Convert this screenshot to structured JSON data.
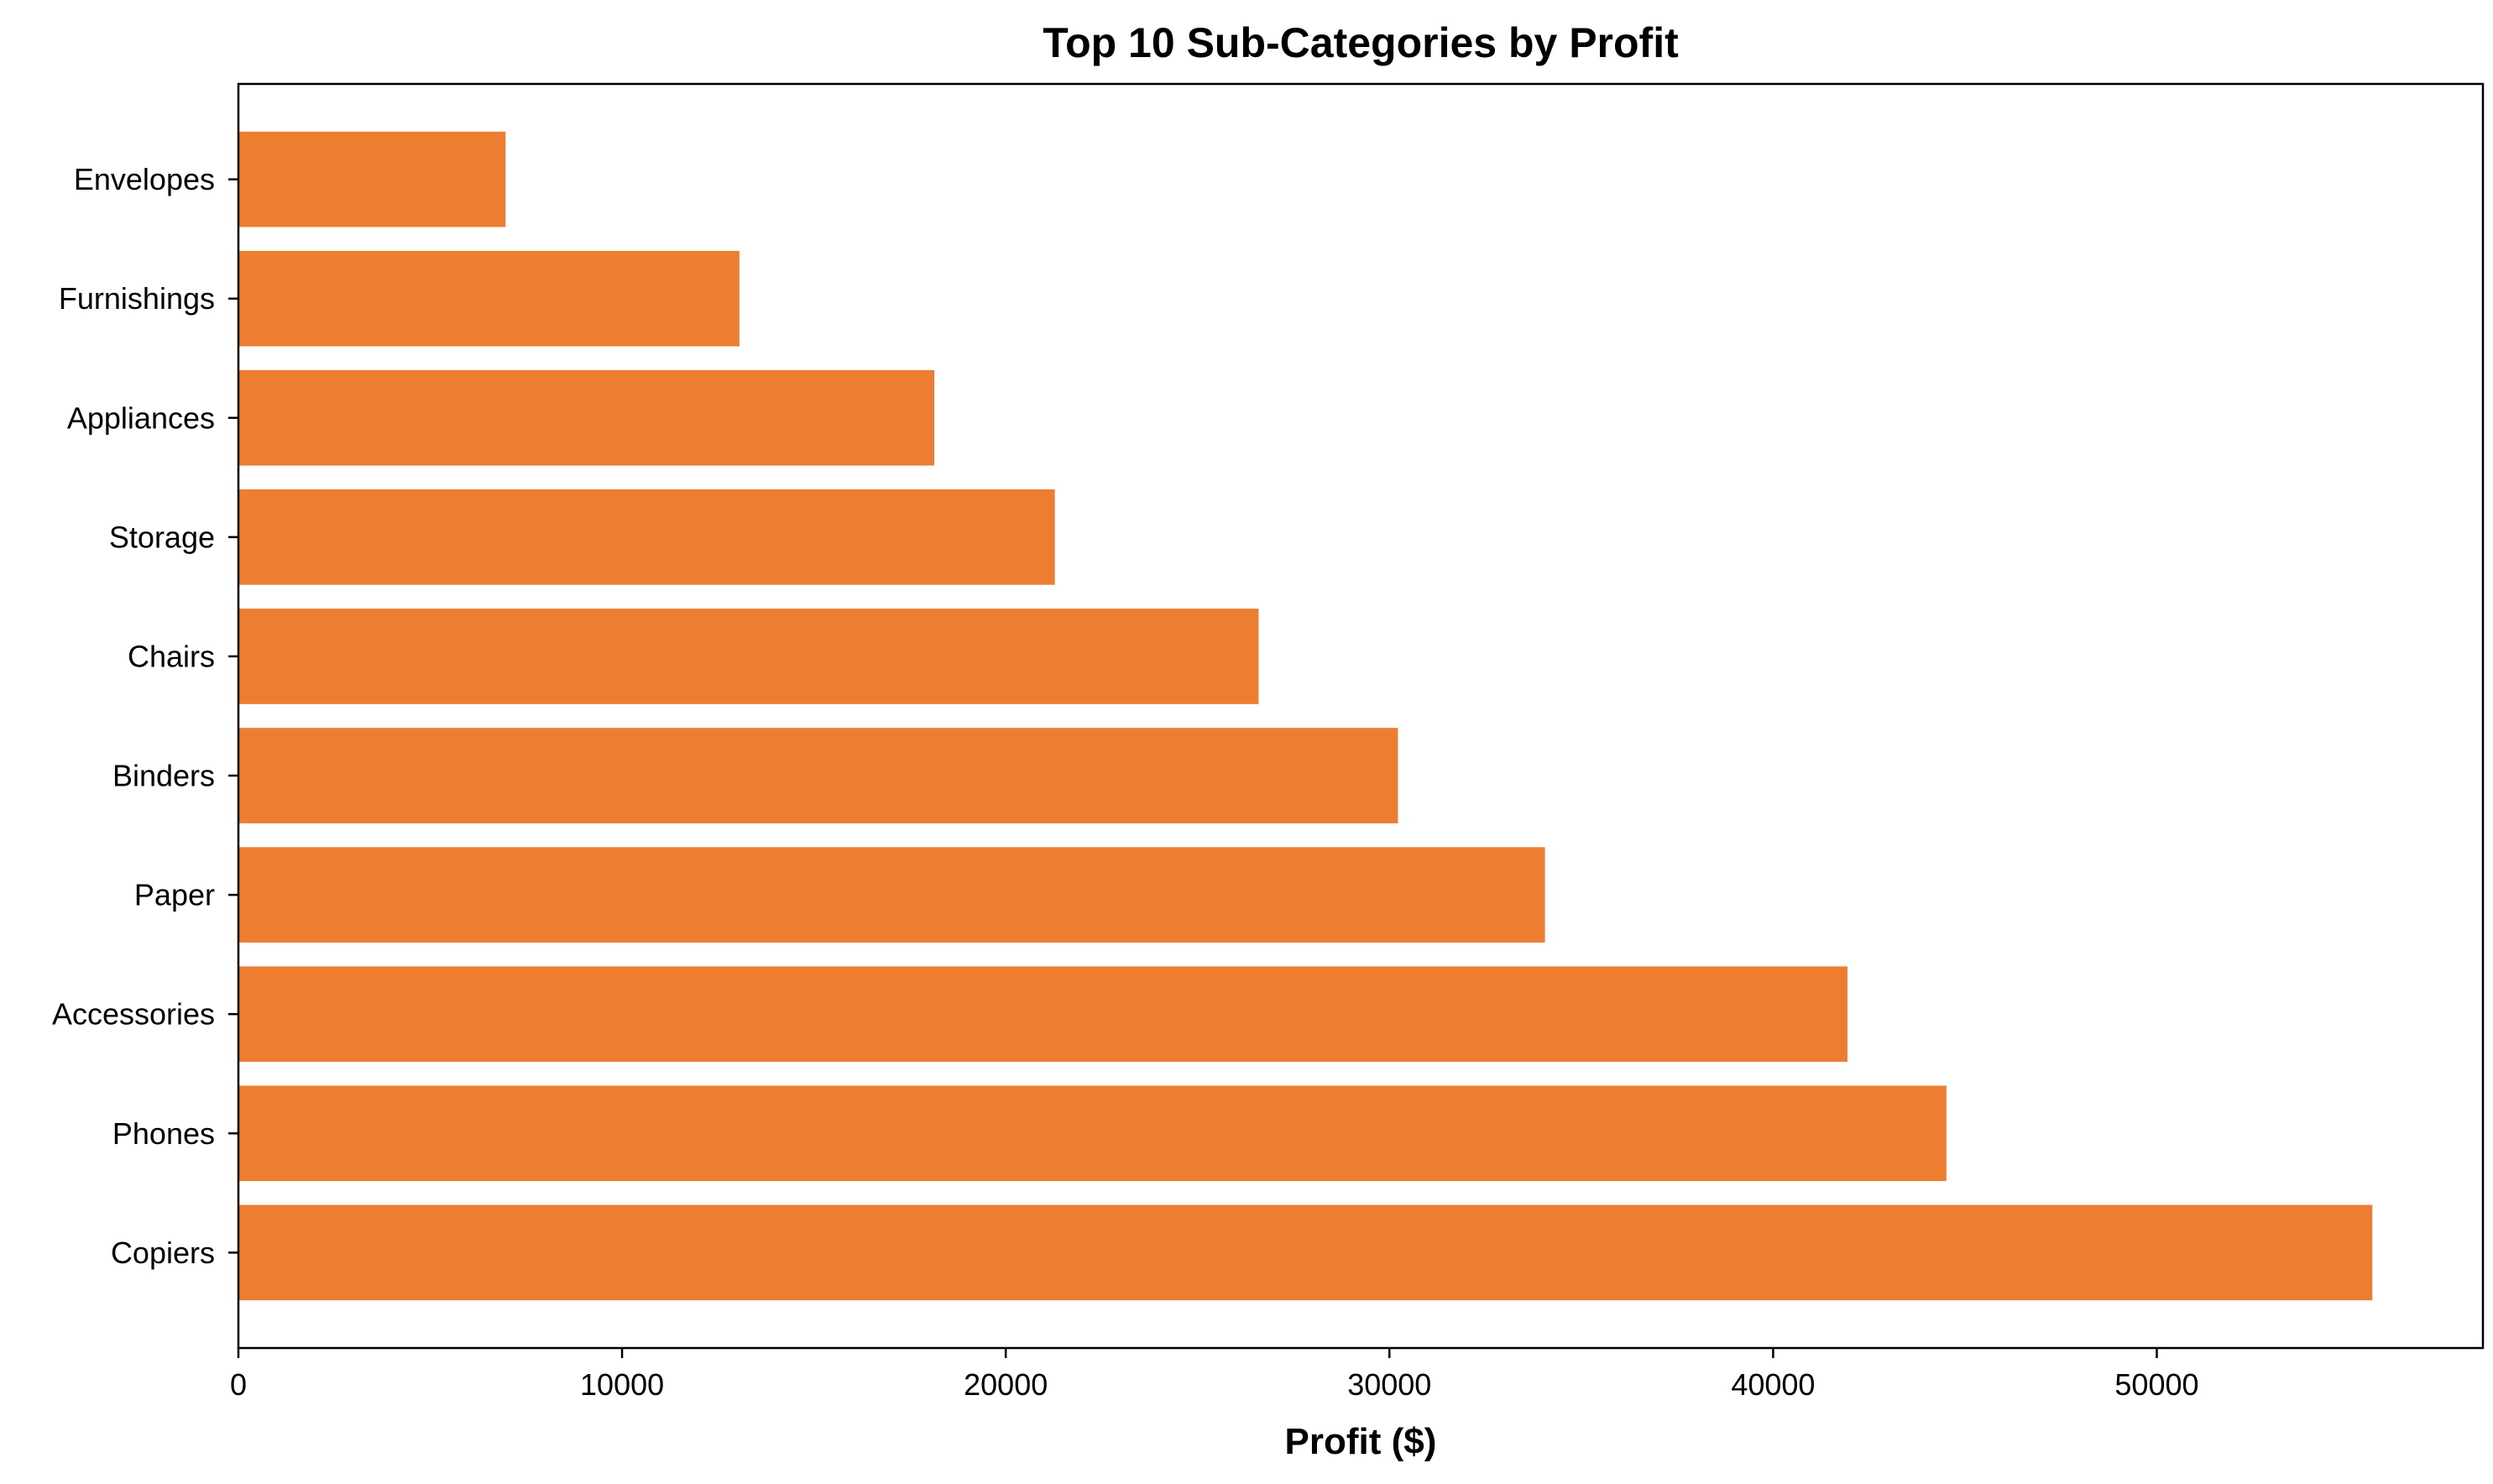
{
  "chart_data": {
    "type": "bar",
    "orientation": "horizontal",
    "title": "Top 10 Sub-Categories by Profit",
    "xlabel": "Profit ($)",
    "ylabel": "",
    "categories": [
      "Copiers",
      "Phones",
      "Accessories",
      "Paper",
      "Binders",
      "Chairs",
      "Storage",
      "Appliances",
      "Furnishings",
      "Envelopes"
    ],
    "values": [
      55618,
      44516,
      41937,
      34054,
      30222,
      26590,
      21279,
      18138,
      13059,
      6964
    ],
    "xlim": [
      0,
      58500
    ],
    "xticks": [
      0,
      10000,
      20000,
      30000,
      40000,
      50000
    ],
    "bar_color": "#ED7D31",
    "grid": false,
    "legend": "none"
  }
}
